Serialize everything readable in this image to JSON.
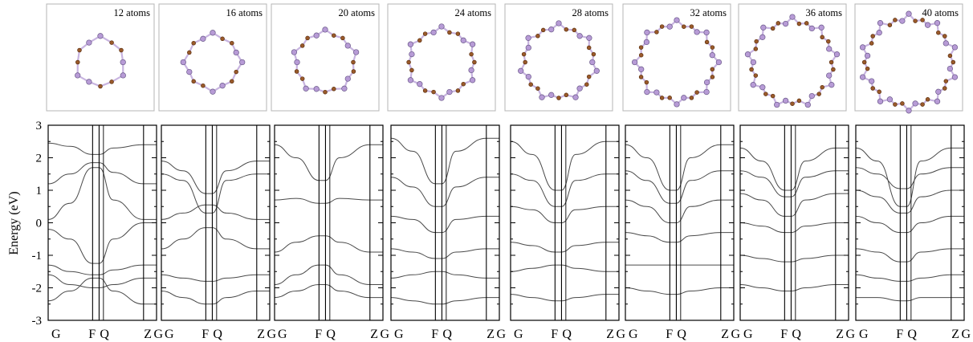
{
  "figure": {
    "ylabel": "Energy (eV)",
    "y_ticks": [
      "3",
      "2",
      "1",
      "0",
      "-1",
      "-2",
      "-3"
    ],
    "x_ticks": [
      "G",
      "F",
      "Q",
      "Z",
      "G"
    ]
  },
  "chart_data": {
    "type": "line",
    "ylabel": "Energy (eV)",
    "ylim": [
      -3,
      3
    ],
    "yticks": [
      3,
      2,
      1,
      0,
      -1,
      -2,
      -3
    ],
    "xticks": [
      "G",
      "F",
      "Q",
      "Z",
      "G"
    ],
    "high_symbol_kpoints": [
      0,
      0.41,
      0.47,
      0.88,
      1.0
    ],
    "x_note": "fractional path coordinate along G–F | F–Q | Q–Z | Z–G segments",
    "panels": [
      {
        "label": "12 atoms",
        "ring_atoms": 12,
        "series": [
          {
            "x": [
              0,
              0.2,
              0.41,
              0.47,
              0.6,
              0.88,
              1.0
            ],
            "y": [
              2.45,
              2.35,
              2.1,
              2.1,
              2.3,
              2.4,
              2.4
            ]
          },
          {
            "x": [
              0,
              0.2,
              0.41,
              0.47,
              0.6,
              0.88,
              1.0
            ],
            "y": [
              1.2,
              1.5,
              1.85,
              1.85,
              1.55,
              1.2,
              1.2
            ]
          },
          {
            "x": [
              0,
              0.2,
              0.41,
              0.47,
              0.6,
              0.88,
              1.0
            ],
            "y": [
              0.1,
              0.6,
              1.7,
              1.7,
              0.7,
              0.1,
              0.1
            ]
          },
          {
            "x": [
              0,
              0.2,
              0.41,
              0.47,
              0.6,
              0.88,
              1.0
            ],
            "y": [
              -0.2,
              -0.5,
              -1.25,
              -1.25,
              -0.5,
              0.0,
              0.0
            ]
          },
          {
            "x": [
              0,
              0.2,
              0.41,
              0.47,
              0.6,
              0.88,
              1.0
            ],
            "y": [
              -1.3,
              -1.5,
              -1.6,
              -1.6,
              -1.45,
              -1.3,
              -1.3
            ]
          },
          {
            "x": [
              0,
              0.2,
              0.41,
              0.47,
              0.6,
              0.88,
              1.0
            ],
            "y": [
              -1.6,
              -1.9,
              -2.0,
              -2.0,
              -1.9,
              -1.7,
              -1.7
            ]
          },
          {
            "x": [
              0,
              0.2,
              0.41,
              0.47,
              0.6,
              0.88,
              1.0
            ],
            "y": [
              -2.4,
              -2.1,
              -1.7,
              -1.7,
              -2.1,
              -2.5,
              -2.5
            ]
          }
        ]
      },
      {
        "label": "16 atoms",
        "ring_atoms": 16,
        "series": [
          {
            "x": [
              0,
              0.2,
              0.41,
              0.47,
              0.6,
              0.88,
              1.0
            ],
            "y": [
              1.9,
              1.6,
              0.9,
              0.9,
              1.6,
              1.9,
              1.9
            ]
          },
          {
            "x": [
              0,
              0.2,
              0.41,
              0.47,
              0.6,
              0.88,
              1.0
            ],
            "y": [
              1.5,
              1.3,
              0.3,
              0.3,
              1.3,
              1.5,
              1.5
            ]
          },
          {
            "x": [
              0,
              0.2,
              0.41,
              0.47,
              0.6,
              0.88,
              1.0
            ],
            "y": [
              0.1,
              0.3,
              0.55,
              0.55,
              0.3,
              0.1,
              0.1
            ]
          },
          {
            "x": [
              0,
              0.2,
              0.41,
              0.47,
              0.6,
              0.88,
              1.0
            ],
            "y": [
              -0.8,
              -0.5,
              -0.15,
              -0.15,
              -0.5,
              -0.8,
              -0.8
            ]
          },
          {
            "x": [
              0,
              0.2,
              0.41,
              0.47,
              0.6,
              0.88,
              1.0
            ],
            "y": [
              -1.6,
              -1.7,
              -1.8,
              -1.8,
              -1.7,
              -1.6,
              -1.6
            ]
          },
          {
            "x": [
              0,
              0.2,
              0.41,
              0.47,
              0.6,
              0.88,
              1.0
            ],
            "y": [
              -2.1,
              -2.3,
              -2.5,
              -2.5,
              -2.3,
              -2.1,
              -2.1
            ]
          }
        ]
      },
      {
        "label": "20 atoms",
        "ring_atoms": 20,
        "series": [
          {
            "x": [
              0,
              0.2,
              0.41,
              0.47,
              0.6,
              0.88,
              1.0
            ],
            "y": [
              2.4,
              2.0,
              1.3,
              1.3,
              2.0,
              2.4,
              2.4
            ]
          },
          {
            "x": [
              0,
              0.2,
              0.41,
              0.47,
              0.6,
              0.88,
              1.0
            ],
            "y": [
              0.7,
              0.75,
              0.6,
              0.6,
              0.75,
              0.7,
              0.7
            ]
          },
          {
            "x": [
              0,
              0.2,
              0.41,
              0.47,
              0.6,
              0.88,
              1.0
            ],
            "y": [
              -0.9,
              -0.6,
              -0.4,
              -0.4,
              -0.6,
              -0.9,
              -0.9
            ]
          },
          {
            "x": [
              0,
              0.2,
              0.41,
              0.47,
              0.6,
              0.88,
              1.0
            ],
            "y": [
              -1.9,
              -1.6,
              -1.3,
              -1.3,
              -1.6,
              -1.9,
              -1.9
            ]
          },
          {
            "x": [
              0,
              0.2,
              0.41,
              0.47,
              0.6,
              0.88,
              1.0
            ],
            "y": [
              -2.3,
              -2.1,
              -1.9,
              -1.9,
              -2.1,
              -2.3,
              -2.3
            ]
          }
        ]
      },
      {
        "label": "24 atoms",
        "ring_atoms": 24,
        "series": [
          {
            "x": [
              0,
              0.2,
              0.41,
              0.47,
              0.6,
              0.88,
              1.0
            ],
            "y": [
              2.6,
              2.2,
              1.2,
              1.2,
              2.2,
              2.6,
              2.6
            ]
          },
          {
            "x": [
              0,
              0.2,
              0.41,
              0.47,
              0.6,
              0.88,
              1.0
            ],
            "y": [
              1.4,
              1.1,
              0.5,
              0.5,
              1.1,
              1.4,
              1.4
            ]
          },
          {
            "x": [
              0,
              0.2,
              0.41,
              0.47,
              0.6,
              0.88,
              1.0
            ],
            "y": [
              0.2,
              0.1,
              -0.3,
              -0.3,
              0.1,
              0.2,
              0.2
            ]
          },
          {
            "x": [
              0,
              0.2,
              0.41,
              0.47,
              0.6,
              0.88,
              1.0
            ],
            "y": [
              -0.8,
              -0.9,
              -1.1,
              -1.1,
              -0.9,
              -0.8,
              -0.8
            ]
          },
          {
            "x": [
              0,
              0.2,
              0.41,
              0.47,
              0.6,
              0.88,
              1.0
            ],
            "y": [
              -1.7,
              -1.6,
              -1.5,
              -1.5,
              -1.6,
              -1.7,
              -1.7
            ]
          },
          {
            "x": [
              0,
              0.2,
              0.41,
              0.47,
              0.6,
              0.88,
              1.0
            ],
            "y": [
              -2.3,
              -2.4,
              -2.5,
              -2.5,
              -2.4,
              -2.3,
              -2.3
            ]
          }
        ]
      },
      {
        "label": "28 atoms",
        "ring_atoms": 28,
        "series": [
          {
            "x": [
              0,
              0.2,
              0.41,
              0.47,
              0.6,
              0.88,
              1.0
            ],
            "y": [
              2.5,
              2.1,
              1.0,
              1.0,
              2.1,
              2.5,
              2.5
            ]
          },
          {
            "x": [
              0,
              0.2,
              0.41,
              0.47,
              0.6,
              0.88,
              1.0
            ],
            "y": [
              1.5,
              1.3,
              0.5,
              0.5,
              1.3,
              1.5,
              1.5
            ]
          },
          {
            "x": [
              0,
              0.2,
              0.41,
              0.47,
              0.6,
              0.88,
              1.0
            ],
            "y": [
              0.5,
              0.4,
              0.0,
              0.0,
              0.4,
              0.5,
              0.5
            ]
          },
          {
            "x": [
              0,
              0.2,
              0.41,
              0.47,
              0.6,
              0.88,
              1.0
            ],
            "y": [
              -0.6,
              -0.7,
              -0.9,
              -0.9,
              -0.7,
              -0.6,
              -0.6
            ]
          },
          {
            "x": [
              0,
              0.2,
              0.41,
              0.47,
              0.6,
              0.88,
              1.0
            ],
            "y": [
              -1.5,
              -1.4,
              -1.3,
              -1.3,
              -1.4,
              -1.5,
              -1.5
            ]
          },
          {
            "x": [
              0,
              0.2,
              0.41,
              0.47,
              0.6,
              0.88,
              1.0
            ],
            "y": [
              -2.2,
              -2.3,
              -2.4,
              -2.4,
              -2.3,
              -2.2,
              -2.2
            ]
          }
        ]
      },
      {
        "label": "32 atoms",
        "ring_atoms": 32,
        "series": [
          {
            "x": [
              0,
              0.2,
              0.41,
              0.47,
              0.6,
              0.88,
              1.0
            ],
            "y": [
              2.4,
              2.0,
              1.0,
              1.0,
              2.0,
              2.4,
              2.4
            ]
          },
          {
            "x": [
              0,
              0.2,
              0.41,
              0.47,
              0.6,
              0.88,
              1.0
            ],
            "y": [
              1.6,
              1.3,
              0.6,
              0.6,
              1.3,
              1.6,
              1.6
            ]
          },
          {
            "x": [
              0,
              0.2,
              0.41,
              0.47,
              0.6,
              0.88,
              1.0
            ],
            "y": [
              0.7,
              0.5,
              0.0,
              0.0,
              0.5,
              0.7,
              0.7
            ]
          },
          {
            "x": [
              0,
              0.2,
              0.41,
              0.47,
              0.6,
              0.88,
              1.0
            ],
            "y": [
              -0.3,
              -0.4,
              -0.6,
              -0.6,
              -0.4,
              -0.3,
              -0.3
            ]
          },
          {
            "x": [
              0,
              0.2,
              0.41,
              0.47,
              0.6,
              0.88,
              1.0
            ],
            "y": [
              -1.3,
              -1.3,
              -1.3,
              -1.3,
              -1.3,
              -1.3,
              -1.3
            ]
          },
          {
            "x": [
              0,
              0.2,
              0.41,
              0.47,
              0.6,
              0.88,
              1.0
            ],
            "y": [
              -2.0,
              -2.1,
              -2.2,
              -2.2,
              -2.1,
              -2.0,
              -2.0
            ]
          }
        ]
      },
      {
        "label": "36 atoms",
        "ring_atoms": 36,
        "series": [
          {
            "x": [
              0,
              0.2,
              0.41,
              0.47,
              0.6,
              0.88,
              1.0
            ],
            "y": [
              2.3,
              1.9,
              1.0,
              1.0,
              1.9,
              2.3,
              2.3
            ]
          },
          {
            "x": [
              0,
              0.2,
              0.41,
              0.47,
              0.6,
              0.88,
              1.0
            ],
            "y": [
              1.6,
              1.4,
              0.8,
              0.8,
              1.4,
              1.6,
              1.6
            ]
          },
          {
            "x": [
              0,
              0.2,
              0.41,
              0.47,
              0.6,
              0.88,
              1.0
            ],
            "y": [
              0.9,
              0.7,
              0.2,
              0.2,
              0.7,
              0.9,
              0.9
            ]
          },
          {
            "x": [
              0,
              0.2,
              0.41,
              0.47,
              0.6,
              0.88,
              1.0
            ],
            "y": [
              0.0,
              -0.1,
              -0.3,
              -0.3,
              -0.1,
              0.0,
              0.0
            ]
          },
          {
            "x": [
              0,
              0.2,
              0.41,
              0.47,
              0.6,
              0.88,
              1.0
            ],
            "y": [
              -1.0,
              -1.1,
              -1.2,
              -1.2,
              -1.1,
              -1.0,
              -1.0
            ]
          },
          {
            "x": [
              0,
              0.2,
              0.41,
              0.47,
              0.6,
              0.88,
              1.0
            ],
            "y": [
              -1.9,
              -2.0,
              -2.1,
              -2.1,
              -2.0,
              -1.9,
              -1.9
            ]
          }
        ]
      },
      {
        "label": "40 atoms",
        "ring_atoms": 40,
        "series": [
          {
            "x": [
              0,
              0.2,
              0.41,
              0.47,
              0.6,
              0.88,
              1.0
            ],
            "y": [
              2.3,
              1.9,
              0.5,
              0.5,
              1.9,
              2.3,
              2.3
            ]
          },
          {
            "x": [
              0,
              0.2,
              0.41,
              0.47,
              0.6,
              0.88,
              1.0
            ],
            "y": [
              1.7,
              1.5,
              1.05,
              1.05,
              1.5,
              1.7,
              1.7
            ]
          },
          {
            "x": [
              0,
              0.2,
              0.41,
              0.47,
              0.6,
              0.88,
              1.0
            ],
            "y": [
              1.0,
              0.8,
              0.3,
              0.3,
              0.8,
              1.0,
              1.0
            ]
          },
          {
            "x": [
              0,
              0.2,
              0.41,
              0.47,
              0.6,
              0.88,
              1.0
            ],
            "y": [
              0.2,
              0.0,
              -0.3,
              -0.3,
              0.0,
              0.2,
              0.2
            ]
          },
          {
            "x": [
              0,
              0.2,
              0.41,
              0.47,
              0.6,
              0.88,
              1.0
            ],
            "y": [
              -0.8,
              -0.9,
              -1.2,
              -1.2,
              -0.9,
              -0.8,
              -0.8
            ]
          },
          {
            "x": [
              0,
              0.2,
              0.41,
              0.47,
              0.6,
              0.88,
              1.0
            ],
            "y": [
              -1.6,
              -1.7,
              -1.8,
              -1.8,
              -1.7,
              -1.6,
              -1.6
            ]
          },
          {
            "x": [
              0,
              0.2,
              0.41,
              0.47,
              0.6,
              0.88,
              1.0
            ],
            "y": [
              -2.3,
              -2.3,
              -2.4,
              -2.4,
              -2.3,
              -2.3,
              -2.3
            ]
          }
        ]
      }
    ]
  },
  "colors": {
    "band_line": "#4a4a4a",
    "axis": "#000000",
    "box_border": "#b5b5b5",
    "atom_purple": "#b79bd6",
    "atom_purple_edge": "#6b5a8a",
    "atom_brown": "#9a5a2a",
    "atom_brown_edge": "#5a2e10",
    "bond": "#c8b4e0"
  }
}
